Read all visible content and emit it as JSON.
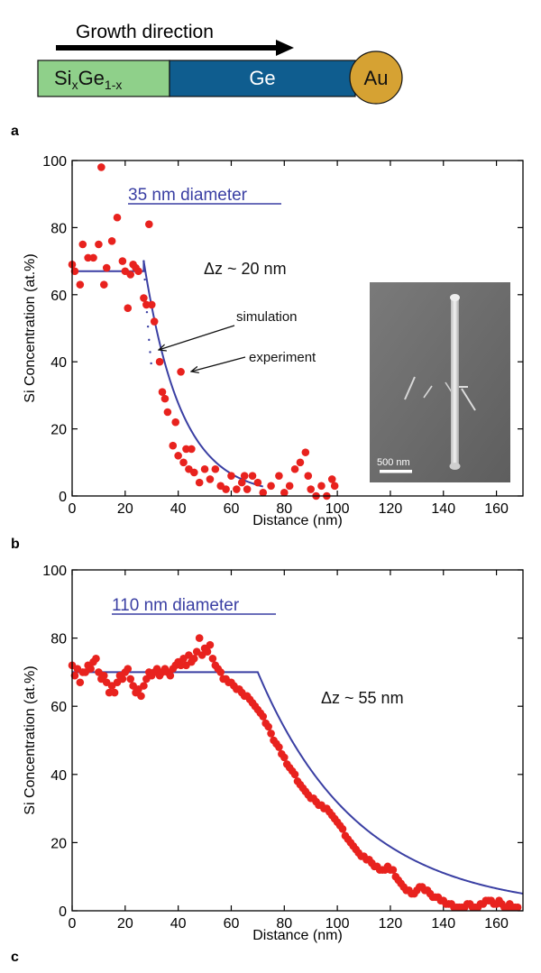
{
  "schematic": {
    "arrow_label": "Growth direction",
    "segments": [
      {
        "name": "sige",
        "label_main": "Si",
        "sub1": "x",
        "label_mid": "Ge",
        "sub2": "1-x",
        "color": "#8fd08a"
      },
      {
        "name": "ge",
        "label": "Ge",
        "color": "#0f5d8f"
      },
      {
        "name": "au",
        "label": "Au",
        "color": "#d6a233"
      }
    ]
  },
  "panel_letters": {
    "a": "a",
    "b": "b",
    "c": "c"
  },
  "colors": {
    "points": "#e8221e",
    "line": "#3a3fa3",
    "axis": "#000000"
  },
  "chart_data": [
    {
      "type": "scatter",
      "panel": "b",
      "title": "35 nm diameter",
      "annotation": "Δz ~ 20 nm",
      "callouts": [
        {
          "text": "simulation",
          "target": [
            30,
            43
          ]
        },
        {
          "text": "experiment",
          "target": [
            41,
            37
          ]
        }
      ],
      "inset": {
        "scale_bar_label": "500 nm"
      },
      "xlabel": "Distance (nm)",
      "ylabel": "Si Concentration (at.%)",
      "xlim": [
        0,
        170
      ],
      "ylim": [
        0,
        100
      ],
      "xticks": [
        0,
        20,
        40,
        60,
        80,
        100,
        120,
        140,
        160
      ],
      "yticks": [
        0,
        20,
        40,
        60,
        80,
        100
      ],
      "series": [
        {
          "kind": "points",
          "points": [
            [
              0,
              69
            ],
            [
              1,
              67
            ],
            [
              3,
              63
            ],
            [
              4,
              75
            ],
            [
              6,
              71
            ],
            [
              8,
              71
            ],
            [
              10,
              75
            ],
            [
              11,
              98
            ],
            [
              12,
              63
            ],
            [
              13,
              68
            ],
            [
              15,
              76
            ],
            [
              17,
              83
            ],
            [
              19,
              70
            ],
            [
              20,
              67
            ],
            [
              21,
              56
            ],
            [
              22,
              66
            ],
            [
              23,
              69
            ],
            [
              24,
              68
            ],
            [
              25,
              67
            ],
            [
              27,
              59
            ],
            [
              28,
              57
            ],
            [
              29,
              81
            ],
            [
              30,
              57
            ],
            [
              31,
              52
            ],
            [
              33,
              40
            ],
            [
              34,
              31
            ],
            [
              35,
              29
            ],
            [
              36,
              25
            ],
            [
              38,
              15
            ],
            [
              39,
              22
            ],
            [
              40,
              12
            ],
            [
              41,
              37
            ],
            [
              42,
              10
            ],
            [
              43,
              14
            ],
            [
              44,
              8
            ],
            [
              45,
              14
            ],
            [
              46,
              7
            ],
            [
              48,
              4
            ],
            [
              50,
              8
            ],
            [
              52,
              5
            ],
            [
              54,
              8
            ],
            [
              56,
              3
            ],
            [
              58,
              2
            ],
            [
              60,
              6
            ],
            [
              62,
              2
            ],
            [
              64,
              4
            ],
            [
              65,
              6
            ],
            [
              66,
              2
            ],
            [
              68,
              6
            ],
            [
              70,
              4
            ],
            [
              72,
              1
            ],
            [
              75,
              3
            ],
            [
              78,
              6
            ],
            [
              80,
              1
            ],
            [
              82,
              3
            ],
            [
              84,
              8
            ],
            [
              86,
              10
            ],
            [
              88,
              13
            ],
            [
              89,
              6
            ],
            [
              90,
              2
            ],
            [
              92,
              0
            ],
            [
              94,
              3
            ],
            [
              96,
              0
            ],
            [
              98,
              5
            ],
            [
              99,
              3
            ]
          ]
        },
        {
          "kind": "line",
          "model": "plateau-exponential",
          "plateau": 67,
          "x0": 27,
          "start": 70,
          "decay": 14,
          "x_end": 72,
          "dotted": [
            27,
            30
          ]
        }
      ]
    },
    {
      "type": "scatter",
      "panel": "c",
      "title": "110 nm diameter",
      "annotation": "Δz ~ 55 nm",
      "xlabel": "Distance (nm)",
      "ylabel": "Si Concentration (at.%)",
      "xlim": [
        0,
        170
      ],
      "ylim": [
        0,
        100
      ],
      "xticks": [
        0,
        20,
        40,
        60,
        80,
        100,
        120,
        140,
        160
      ],
      "yticks": [
        0,
        20,
        40,
        60,
        80,
        100
      ],
      "series": [
        {
          "kind": "points",
          "points": [
            [
              0,
              72
            ],
            [
              1,
              69
            ],
            [
              2,
              71
            ],
            [
              3,
              67
            ],
            [
              4,
              70
            ],
            [
              5,
              70
            ],
            [
              6,
              72
            ],
            [
              7,
              71
            ],
            [
              8,
              73
            ],
            [
              9,
              74
            ],
            [
              10,
              70
            ],
            [
              11,
              68
            ],
            [
              12,
              69
            ],
            [
              13,
              67
            ],
            [
              14,
              64
            ],
            [
              15,
              66
            ],
            [
              16,
              64
            ],
            [
              17,
              67
            ],
            [
              18,
              69
            ],
            [
              19,
              68
            ],
            [
              20,
              70
            ],
            [
              21,
              71
            ],
            [
              22,
              68
            ],
            [
              23,
              66
            ],
            [
              24,
              64
            ],
            [
              25,
              65
            ],
            [
              26,
              63
            ],
            [
              27,
              66
            ],
            [
              28,
              68
            ],
            [
              29,
              70
            ],
            [
              30,
              69
            ],
            [
              31,
              70
            ],
            [
              32,
              71
            ],
            [
              33,
              69
            ],
            [
              34,
              70
            ],
            [
              35,
              71
            ],
            [
              36,
              70
            ],
            [
              37,
              69
            ],
            [
              38,
              71
            ],
            [
              39,
              72
            ],
            [
              40,
              73
            ],
            [
              41,
              72
            ],
            [
              42,
              74
            ],
            [
              43,
              72
            ],
            [
              44,
              75
            ],
            [
              45,
              73
            ],
            [
              46,
              74
            ],
            [
              47,
              76
            ],
            [
              48,
              80
            ],
            [
              49,
              75
            ],
            [
              50,
              77
            ],
            [
              51,
              76
            ],
            [
              52,
              78
            ],
            [
              53,
              74
            ],
            [
              54,
              72
            ],
            [
              55,
              71
            ],
            [
              56,
              70
            ],
            [
              57,
              68
            ],
            [
              58,
              68
            ],
            [
              59,
              67
            ],
            [
              60,
              67
            ],
            [
              61,
              66
            ],
            [
              62,
              65
            ],
            [
              63,
              65
            ],
            [
              64,
              64
            ],
            [
              65,
              63
            ],
            [
              66,
              63
            ],
            [
              67,
              62
            ],
            [
              68,
              61
            ],
            [
              69,
              60
            ],
            [
              70,
              59
            ],
            [
              71,
              58
            ],
            [
              72,
              57
            ],
            [
              73,
              55
            ],
            [
              74,
              54
            ],
            [
              75,
              52
            ],
            [
              76,
              50
            ],
            [
              77,
              49
            ],
            [
              78,
              48
            ],
            [
              79,
              46
            ],
            [
              80,
              45
            ],
            [
              81,
              43
            ],
            [
              82,
              42
            ],
            [
              83,
              41
            ],
            [
              84,
              40
            ],
            [
              85,
              38
            ],
            [
              86,
              37
            ],
            [
              87,
              36
            ],
            [
              88,
              35
            ],
            [
              89,
              34
            ],
            [
              90,
              33
            ],
            [
              91,
              33
            ],
            [
              92,
              32
            ],
            [
              93,
              31
            ],
            [
              94,
              31
            ],
            [
              95,
              30
            ],
            [
              96,
              30
            ],
            [
              97,
              29
            ],
            [
              98,
              28
            ],
            [
              99,
              27
            ],
            [
              100,
              26
            ],
            [
              101,
              25
            ],
            [
              102,
              24
            ],
            [
              103,
              22
            ],
            [
              104,
              21
            ],
            [
              105,
              20
            ],
            [
              106,
              19
            ],
            [
              107,
              18
            ],
            [
              108,
              17
            ],
            [
              109,
              16
            ],
            [
              110,
              16
            ],
            [
              111,
              15
            ],
            [
              112,
              15
            ],
            [
              113,
              14
            ],
            [
              114,
              13
            ],
            [
              115,
              13
            ],
            [
              116,
              12
            ],
            [
              117,
              12
            ],
            [
              118,
              12
            ],
            [
              119,
              13
            ],
            [
              120,
              12
            ],
            [
              121,
              12
            ],
            [
              122,
              10
            ],
            [
              123,
              9
            ],
            [
              124,
              8
            ],
            [
              125,
              7
            ],
            [
              126,
              6
            ],
            [
              127,
              6
            ],
            [
              128,
              5
            ],
            [
              129,
              5
            ],
            [
              130,
              6
            ],
            [
              131,
              7
            ],
            [
              132,
              7
            ],
            [
              133,
              6
            ],
            [
              134,
              6
            ],
            [
              135,
              5
            ],
            [
              136,
              4
            ],
            [
              137,
              4
            ],
            [
              138,
              4
            ],
            [
              139,
              3
            ],
            [
              140,
              3
            ],
            [
              141,
              2
            ],
            [
              142,
              2
            ],
            [
              143,
              2
            ],
            [
              144,
              1
            ],
            [
              145,
              1
            ],
            [
              146,
              1
            ],
            [
              147,
              1
            ],
            [
              148,
              1
            ],
            [
              149,
              2
            ],
            [
              150,
              2
            ],
            [
              151,
              1
            ],
            [
              152,
              1
            ],
            [
              153,
              1
            ],
            [
              154,
              2
            ],
            [
              155,
              2
            ],
            [
              156,
              3
            ],
            [
              157,
              3
            ],
            [
              158,
              3
            ],
            [
              159,
              2
            ],
            [
              160,
              2
            ],
            [
              161,
              3
            ],
            [
              162,
              2
            ],
            [
              163,
              1
            ],
            [
              164,
              1
            ],
            [
              165,
              2
            ],
            [
              166,
              1
            ],
            [
              167,
              1
            ],
            [
              168,
              1
            ]
          ]
        },
        {
          "kind": "line",
          "model": "plateau-exponential",
          "plateau": 70,
          "x0": 70,
          "start": 70,
          "decay": 38,
          "x_end": 170
        }
      ]
    }
  ]
}
